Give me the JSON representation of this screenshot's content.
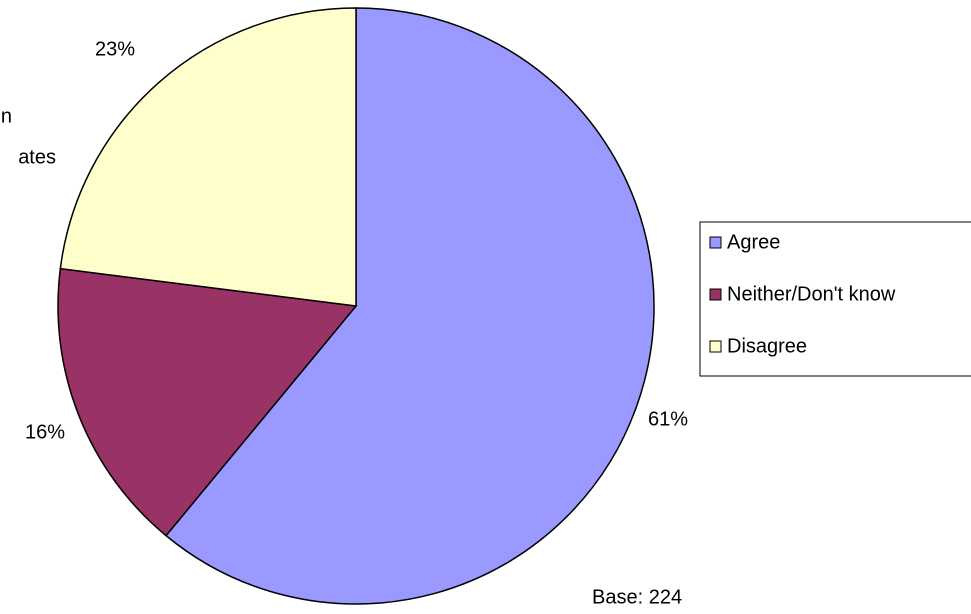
{
  "chart_data": {
    "type": "pie",
    "title_fragments": [
      "n",
      "ates"
    ],
    "categories": [
      "Agree",
      "Neither/Don't know",
      "Disagree"
    ],
    "values": [
      61,
      16,
      23
    ],
    "value_labels": [
      "61%",
      "16%",
      "23%"
    ],
    "colors": [
      "#9999ff",
      "#993366",
      "#ffffcc"
    ],
    "legend": "right",
    "note": "Base: 224"
  }
}
